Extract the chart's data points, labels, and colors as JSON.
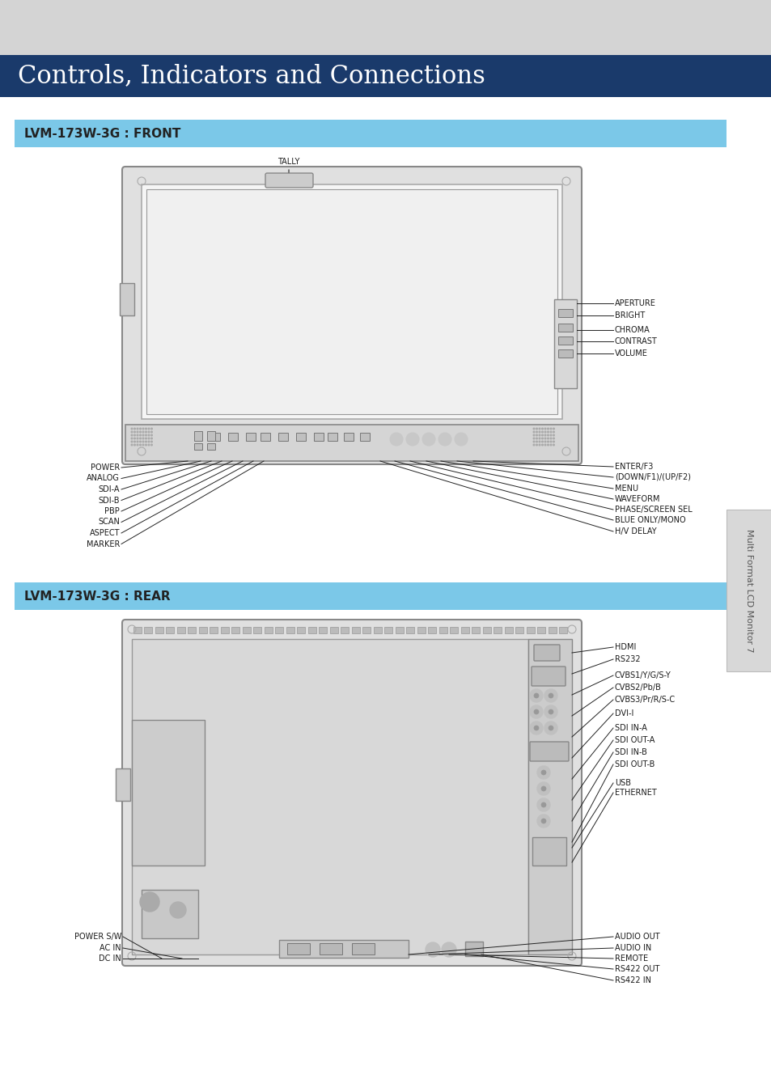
{
  "bg_color": "#d4d4d4",
  "white": "#ffffff",
  "dark_blue": "#1a3a6b",
  "light_blue": "#7bc8e8",
  "light_gray": "#e8e8e8",
  "mid_gray": "#b0b0b0",
  "dark_gray": "#555555",
  "black": "#222222",
  "text_color": "#1a1a1a",
  "title": "Controls, Indicators and Connections",
  "section1": "LVM-173W-3G : FRONT",
  "section2": "LVM-173W-3G : REAR",
  "sidebar_text": "Multi Format LCD Monitor 7",
  "front_labels_left": [
    "POWER",
    "ANALOG",
    "SDI-A",
    "SDI-B",
    "PBP",
    "SCAN",
    "ASPECT",
    "MARKER"
  ],
  "front_labels_right_top": [
    "APERTURE",
    "BRIGHT",
    "CHROMA",
    "CONTRAST",
    "VOLUME"
  ],
  "front_labels_right_bottom": [
    "ENTER/F3",
    "(DOWN/F1)/(UP/F2)",
    "MENU",
    "WAVEFORM",
    "PHASE/SCREEN SEL",
    "BLUE ONLY/MONO",
    "H/V DELAY"
  ],
  "rear_labels_left": [
    "POWER S/W",
    "AC IN",
    "DC IN"
  ],
  "rear_labels_right_top": [
    "HDMI",
    "RS232",
    "CVBS1/Y/G/S-Y",
    "CVBS2/Pb/B",
    "CVBS3/Pr/R/S-C",
    "DVI-I",
    "SDI IN-A",
    "SDI OUT-A",
    "SDI IN-B",
    "SDI OUT-B"
  ],
  "rear_labels_right_bottom": [
    "USB",
    "ETHERNET"
  ],
  "rear_labels_bottom_right": [
    "AUDIO OUT",
    "AUDIO IN",
    "REMOTE",
    "RS422 OUT",
    "RS422 IN"
  ]
}
